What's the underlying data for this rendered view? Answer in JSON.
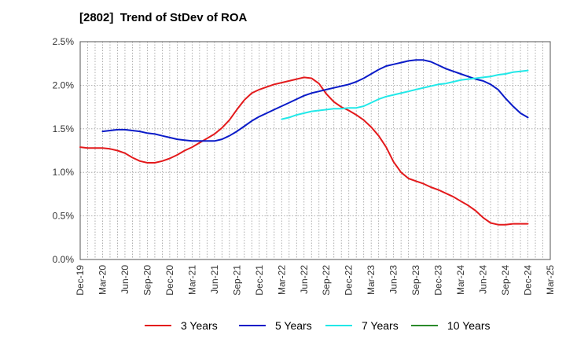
{
  "chart_data": {
    "type": "line",
    "title": "[2802]  Trend of StDev of ROA",
    "x_tick_labels": [
      "Dec-19",
      "Mar-20",
      "Jun-20",
      "Sep-20",
      "Dec-20",
      "Mar-21",
      "Jun-21",
      "Sep-21",
      "Dec-21",
      "Mar-22",
      "Jun-22",
      "Sep-22",
      "Dec-22",
      "Mar-23",
      "Jun-23",
      "Sep-23",
      "Dec-23",
      "Mar-24",
      "Jun-24",
      "Sep-24",
      "Dec-24",
      "Mar-25"
    ],
    "y_tick_labels": [
      "0.0%",
      "0.5%",
      "1.0%",
      "1.5%",
      "2.0%",
      "2.5%"
    ],
    "ylim": [
      0,
      2.5
    ],
    "y_unit": "%",
    "grid": true,
    "legend_position": "bottom",
    "series": [
      {
        "name": "3 Years",
        "color": "#e31a1c",
        "points": [
          [
            "Dec-19",
            1.29
          ],
          [
            "Jan-20",
            1.28
          ],
          [
            "Feb-20",
            1.28
          ],
          [
            "Mar-20",
            1.28
          ],
          [
            "Apr-20",
            1.27
          ],
          [
            "May-20",
            1.25
          ],
          [
            "Jun-20",
            1.22
          ],
          [
            "Jul-20",
            1.17
          ],
          [
            "Aug-20",
            1.13
          ],
          [
            "Sep-20",
            1.11
          ],
          [
            "Oct-20",
            1.11
          ],
          [
            "Nov-20",
            1.13
          ],
          [
            "Dec-20",
            1.16
          ],
          [
            "Jan-21",
            1.2
          ],
          [
            "Feb-21",
            1.25
          ],
          [
            "Mar-21",
            1.29
          ],
          [
            "Apr-21",
            1.34
          ],
          [
            "May-21",
            1.39
          ],
          [
            "Jun-21",
            1.44
          ],
          [
            "Jul-21",
            1.51
          ],
          [
            "Aug-21",
            1.6
          ],
          [
            "Sep-21",
            1.72
          ],
          [
            "Oct-21",
            1.83
          ],
          [
            "Nov-21",
            1.91
          ],
          [
            "Dec-21",
            1.95
          ],
          [
            "Jan-22",
            1.98
          ],
          [
            "Feb-22",
            2.01
          ],
          [
            "Mar-22",
            2.03
          ],
          [
            "Apr-22",
            2.05
          ],
          [
            "May-22",
            2.07
          ],
          [
            "Jun-22",
            2.09
          ],
          [
            "Jul-22",
            2.08
          ],
          [
            "Aug-22",
            2.02
          ],
          [
            "Sep-22",
            1.9
          ],
          [
            "Oct-22",
            1.81
          ],
          [
            "Nov-22",
            1.75
          ],
          [
            "Dec-22",
            1.71
          ],
          [
            "Jan-23",
            1.66
          ],
          [
            "Feb-23",
            1.6
          ],
          [
            "Mar-23",
            1.52
          ],
          [
            "Apr-23",
            1.42
          ],
          [
            "May-23",
            1.29
          ],
          [
            "Jun-23",
            1.12
          ],
          [
            "Jul-23",
            1.0
          ],
          [
            "Aug-23",
            0.93
          ],
          [
            "Sep-23",
            0.9
          ],
          [
            "Oct-23",
            0.87
          ],
          [
            "Nov-23",
            0.83
          ],
          [
            "Dec-23",
            0.8
          ],
          [
            "Jan-24",
            0.76
          ],
          [
            "Feb-24",
            0.72
          ],
          [
            "Mar-24",
            0.67
          ],
          [
            "Apr-24",
            0.62
          ],
          [
            "May-24",
            0.56
          ],
          [
            "Jun-24",
            0.48
          ],
          [
            "Jul-24",
            0.42
          ],
          [
            "Aug-24",
            0.4
          ],
          [
            "Sep-24",
            0.4
          ],
          [
            "Oct-24",
            0.41
          ],
          [
            "Nov-24",
            0.41
          ],
          [
            "Dec-24",
            0.41
          ]
        ]
      },
      {
        "name": "5 Years",
        "color": "#0a1bc8",
        "points": [
          [
            "Mar-20",
            1.47
          ],
          [
            "Apr-20",
            1.48
          ],
          [
            "May-20",
            1.49
          ],
          [
            "Jun-20",
            1.49
          ],
          [
            "Jul-20",
            1.48
          ],
          [
            "Aug-20",
            1.47
          ],
          [
            "Sep-20",
            1.45
          ],
          [
            "Oct-20",
            1.44
          ],
          [
            "Nov-20",
            1.42
          ],
          [
            "Dec-20",
            1.4
          ],
          [
            "Jan-21",
            1.38
          ],
          [
            "Feb-21",
            1.37
          ],
          [
            "Mar-21",
            1.36
          ],
          [
            "Apr-21",
            1.36
          ],
          [
            "May-21",
            1.36
          ],
          [
            "Jun-21",
            1.36
          ],
          [
            "Jul-21",
            1.38
          ],
          [
            "Aug-21",
            1.42
          ],
          [
            "Sep-21",
            1.47
          ],
          [
            "Oct-21",
            1.53
          ],
          [
            "Nov-21",
            1.59
          ],
          [
            "Dec-21",
            1.64
          ],
          [
            "Jan-22",
            1.68
          ],
          [
            "Feb-22",
            1.72
          ],
          [
            "Mar-22",
            1.76
          ],
          [
            "Apr-22",
            1.8
          ],
          [
            "May-22",
            1.84
          ],
          [
            "Jun-22",
            1.88
          ],
          [
            "Jul-22",
            1.91
          ],
          [
            "Aug-22",
            1.93
          ],
          [
            "Sep-22",
            1.95
          ],
          [
            "Oct-22",
            1.97
          ],
          [
            "Nov-22",
            1.99
          ],
          [
            "Dec-22",
            2.01
          ],
          [
            "Jan-23",
            2.04
          ],
          [
            "Feb-23",
            2.08
          ],
          [
            "Mar-23",
            2.13
          ],
          [
            "Apr-23",
            2.18
          ],
          [
            "May-23",
            2.22
          ],
          [
            "Jun-23",
            2.24
          ],
          [
            "Jul-23",
            2.26
          ],
          [
            "Aug-23",
            2.28
          ],
          [
            "Sep-23",
            2.29
          ],
          [
            "Oct-23",
            2.29
          ],
          [
            "Nov-23",
            2.27
          ],
          [
            "Dec-23",
            2.23
          ],
          [
            "Jan-24",
            2.19
          ],
          [
            "Feb-24",
            2.16
          ],
          [
            "Mar-24",
            2.13
          ],
          [
            "Apr-24",
            2.1
          ],
          [
            "May-24",
            2.07
          ],
          [
            "Jun-24",
            2.05
          ],
          [
            "Jul-24",
            2.01
          ],
          [
            "Aug-24",
            1.95
          ],
          [
            "Sep-24",
            1.85
          ],
          [
            "Oct-24",
            1.76
          ],
          [
            "Nov-24",
            1.68
          ],
          [
            "Dec-24",
            1.63
          ]
        ]
      },
      {
        "name": "7 Years",
        "color": "#21e8e8",
        "points": [
          [
            "Mar-22",
            1.61
          ],
          [
            "Apr-22",
            1.63
          ],
          [
            "May-22",
            1.66
          ],
          [
            "Jun-22",
            1.68
          ],
          [
            "Jul-22",
            1.7
          ],
          [
            "Aug-22",
            1.71
          ],
          [
            "Sep-22",
            1.72
          ],
          [
            "Oct-22",
            1.73
          ],
          [
            "Nov-22",
            1.73
          ],
          [
            "Dec-22",
            1.74
          ],
          [
            "Jan-23",
            1.74
          ],
          [
            "Feb-23",
            1.76
          ],
          [
            "Mar-23",
            1.8
          ],
          [
            "Apr-23",
            1.84
          ],
          [
            "May-23",
            1.87
          ],
          [
            "Jun-23",
            1.89
          ],
          [
            "Jul-23",
            1.91
          ],
          [
            "Aug-23",
            1.93
          ],
          [
            "Sep-23",
            1.95
          ],
          [
            "Oct-23",
            1.97
          ],
          [
            "Nov-23",
            1.99
          ],
          [
            "Dec-23",
            2.01
          ],
          [
            "Jan-24",
            2.02
          ],
          [
            "Feb-24",
            2.04
          ],
          [
            "Mar-24",
            2.06
          ],
          [
            "Apr-24",
            2.07
          ],
          [
            "May-24",
            2.08
          ],
          [
            "Jun-24",
            2.09
          ],
          [
            "Jul-24",
            2.1
          ],
          [
            "Aug-24",
            2.12
          ],
          [
            "Sep-24",
            2.13
          ],
          [
            "Oct-24",
            2.15
          ],
          [
            "Nov-24",
            2.16
          ],
          [
            "Dec-24",
            2.17
          ]
        ]
      },
      {
        "name": "10 Years",
        "color": "#2a8a2a",
        "points": []
      }
    ]
  }
}
